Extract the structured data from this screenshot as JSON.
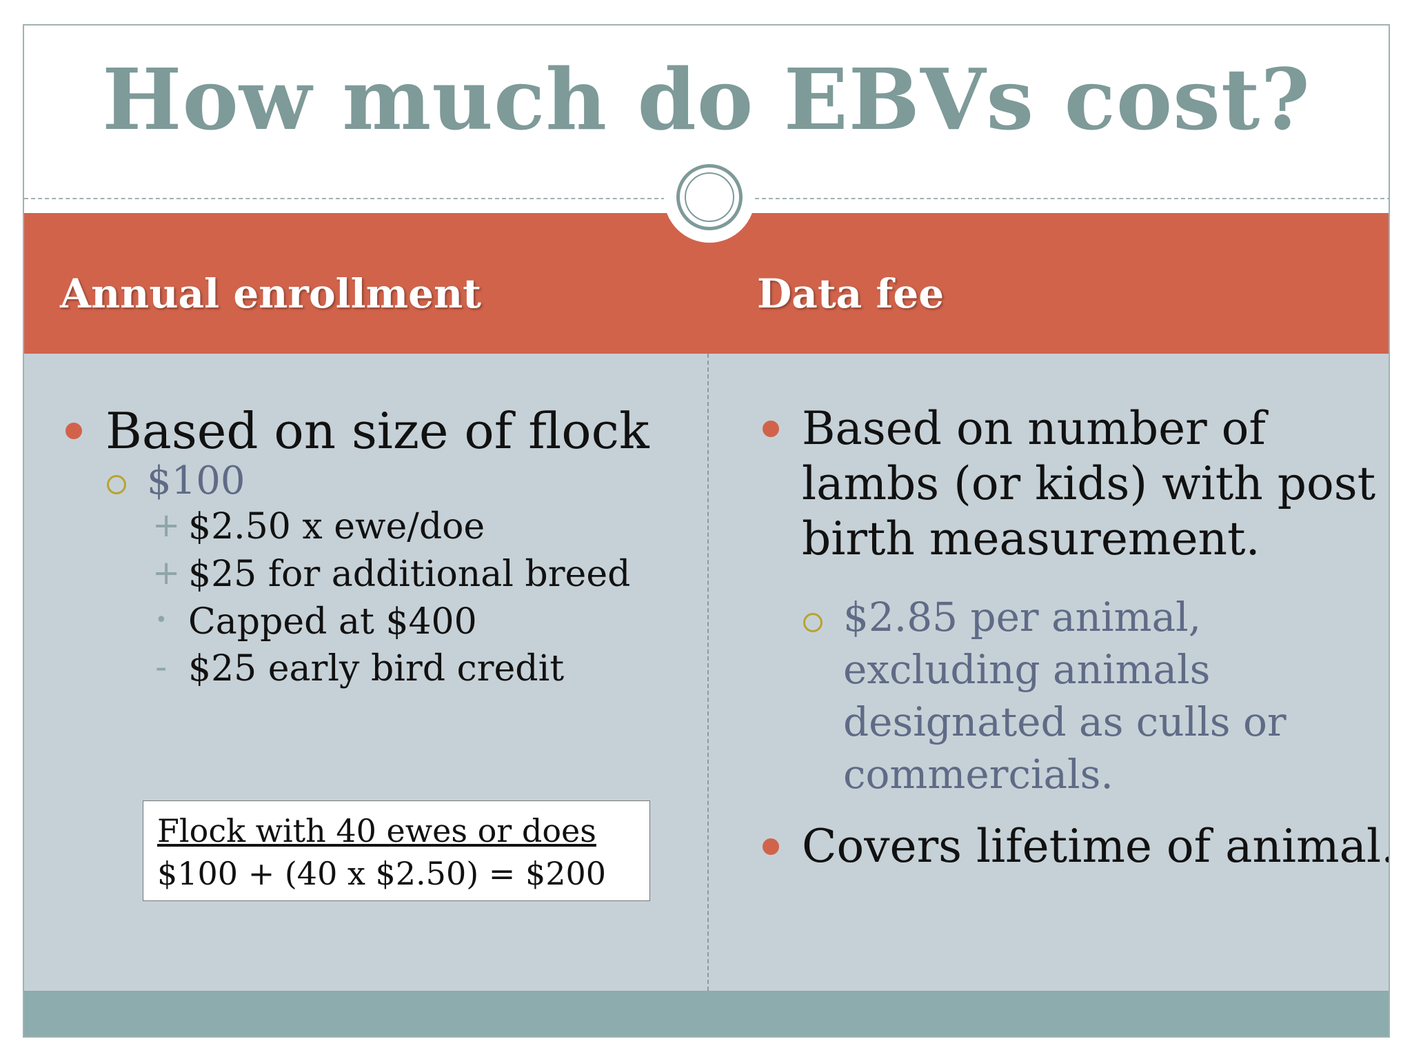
{
  "slide": {
    "title": "How much do EBVs cost?",
    "columns": [
      {
        "heading": "Annual enrollment",
        "bullets": [
          {
            "text": "Based on size of flock",
            "sub": [
              {
                "text": "$100",
                "sub": [
                  {
                    "mark": "+",
                    "text": "$2.50 x ewe/doe"
                  },
                  {
                    "mark": "+",
                    "text": "$25 for additional breed"
                  },
                  {
                    "mark": "•",
                    "text": "Capped at $400"
                  },
                  {
                    "mark": "-",
                    "text": "$25 early bird credit"
                  }
                ]
              }
            ]
          }
        ],
        "example": {
          "title": "Flock with 40 ewes or does",
          "calc": "$100 + (40 x $2.50) = $200"
        }
      },
      {
        "heading": "Data fee",
        "bullets": [
          {
            "lines": [
              "Based on number of",
              "lambs (or kids) with post",
              "birth measurement."
            ],
            "sub": [
              {
                "lines": [
                  "$2.85 per animal,",
                  "excluding animals",
                  "designated as culls or",
                  "commercials."
                ]
              }
            ]
          },
          {
            "text": "Covers lifetime of animal."
          }
        ]
      }
    ]
  },
  "colors": {
    "title": "#7e9a99",
    "header_band": "#d1634b",
    "body_bg": "#c6d1d7",
    "footer_band": "#8cacad",
    "bullet_dot": "#d1634b",
    "sub_ring": "#b8a330",
    "sub_text": "#5f6b86"
  }
}
